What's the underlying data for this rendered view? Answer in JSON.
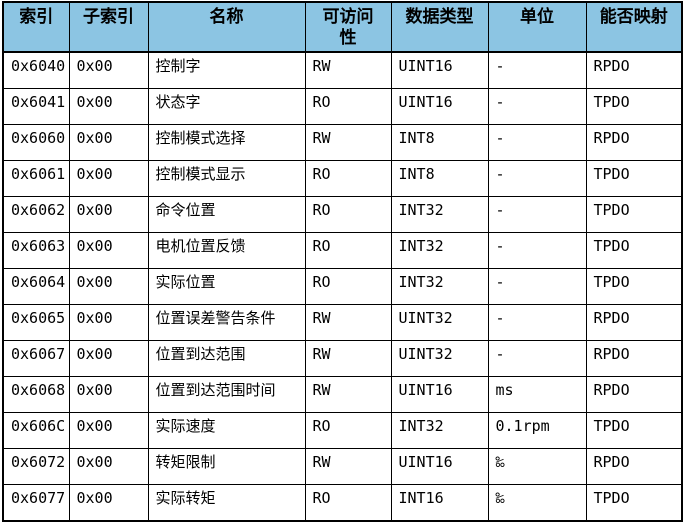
{
  "table": {
    "columns": [
      {
        "key": "index",
        "label": "索引"
      },
      {
        "key": "subindex",
        "label": "子索引"
      },
      {
        "key": "name",
        "label": "名称"
      },
      {
        "key": "access",
        "label": "可访问\n性"
      },
      {
        "key": "datatype",
        "label": "数据类型"
      },
      {
        "key": "unit",
        "label": "单位"
      },
      {
        "key": "mappable",
        "label": "能否映射"
      }
    ],
    "rows": [
      [
        "0x6040",
        "0x00",
        "控制字",
        "RW",
        "UINT16",
        "-",
        "RPDO"
      ],
      [
        "0x6041",
        "0x00",
        "状态字",
        "RO",
        "UINT16",
        "-",
        "TPDO"
      ],
      [
        "0x6060",
        "0x00",
        "控制模式选择",
        "RW",
        "INT8",
        "-",
        "RPDO"
      ],
      [
        "0x6061",
        "0x00",
        "控制模式显示",
        "RO",
        "INT8",
        "-",
        "TPDO"
      ],
      [
        "0x6062",
        "0x00",
        "命令位置",
        "RO",
        "INT32",
        "-",
        "TPDO"
      ],
      [
        "0x6063",
        "0x00",
        "电机位置反馈",
        "RO",
        "INT32",
        "-",
        "TPDO"
      ],
      [
        "0x6064",
        "0x00",
        "实际位置",
        "RO",
        "INT32",
        "-",
        "TPDO"
      ],
      [
        "0x6065",
        "0x00",
        "位置误差警告条件",
        "RW",
        "UINT32",
        "-",
        "RPDO"
      ],
      [
        "0x6067",
        "0x00",
        "位置到达范围",
        "RW",
        "UINT32",
        "-",
        "RPDO"
      ],
      [
        "0x6068",
        "0x00",
        "位置到达范围时间",
        "RW",
        "UINT16",
        "ms",
        "RPDO"
      ],
      [
        "0x606C",
        "0x00",
        "实际速度",
        "RO",
        "INT32",
        "0.1rpm",
        "TPDO"
      ],
      [
        "0x6072",
        "0x00",
        "转矩限制",
        "RW",
        "UINT16",
        "‰",
        "RPDO"
      ],
      [
        "0x6077",
        "0x00",
        "实际转矩",
        "RO",
        "INT16",
        "‰",
        "TPDO"
      ]
    ]
  },
  "colors": {
    "header_bg": "#8CC5E3",
    "border": "#000000",
    "row_bg": "#FFFFFF",
    "text": "#000000"
  }
}
